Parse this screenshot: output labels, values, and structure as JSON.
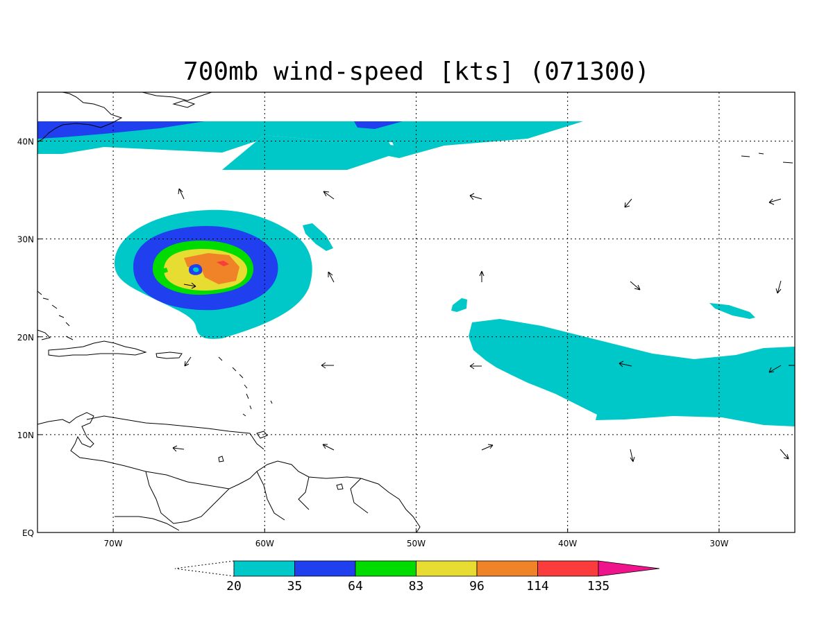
{
  "title": "700mb wind-speed [kts] (071300)",
  "map": {
    "lon_range": [
      -75,
      -25
    ],
    "lat_range": [
      0,
      45
    ],
    "lon_ticks": [
      {
        "value": -70,
        "label": "70W"
      },
      {
        "value": -60,
        "label": "60W"
      },
      {
        "value": -50,
        "label": "50W"
      },
      {
        "value": -40,
        "label": "40W"
      },
      {
        "value": -30,
        "label": "30W"
      }
    ],
    "lat_ticks": [
      {
        "value": 0,
        "label": "EQ"
      },
      {
        "value": 10,
        "label": "10N"
      },
      {
        "value": 20,
        "label": "20N"
      },
      {
        "value": 30,
        "label": "30N"
      },
      {
        "value": 40,
        "label": "40N"
      }
    ],
    "grid": true
  },
  "colorbar": {
    "levels": [
      "20",
      "35",
      "64",
      "83",
      "96",
      "114",
      "135"
    ],
    "colors": [
      "#00c8c8",
      "#2040f0",
      "#00dc00",
      "#e6dc32",
      "#f08228",
      "#fa3c3c",
      "#f0148c"
    ]
  },
  "storm_center": {
    "lon": -64.5,
    "lat": 26.9
  }
}
